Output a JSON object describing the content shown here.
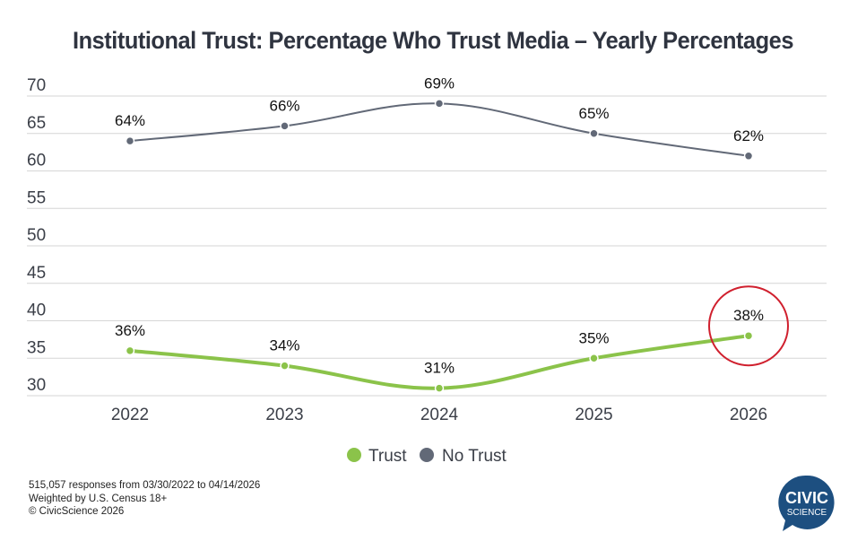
{
  "chart_data": {
    "type": "line",
    "title": "Institutional Trust: Percentage Who Trust Media – Yearly Percentages",
    "xlabel": "",
    "ylabel": "",
    "categories": [
      "2022",
      "2023",
      "2024",
      "2025",
      "2026"
    ],
    "ylim": [
      30,
      70
    ],
    "yticks": [
      30,
      35,
      40,
      45,
      50,
      55,
      60,
      65,
      70
    ],
    "grid": true,
    "legend_position": "bottom-center",
    "series": [
      {
        "name": "Trust",
        "color": "#8bc34a",
        "values": [
          36,
          34,
          31,
          35,
          38
        ],
        "labels": [
          "36%",
          "34%",
          "31%",
          "35%",
          "38%"
        ]
      },
      {
        "name": "No Trust",
        "color": "#626977",
        "values": [
          64,
          66,
          69,
          65,
          62
        ],
        "labels": [
          "64%",
          "66%",
          "69%",
          "65%",
          "62%"
        ]
      }
    ],
    "annotations": [
      {
        "type": "circle",
        "target": "Trust 2026",
        "color": "#d0202e"
      }
    ]
  },
  "footer": {
    "line1": "515,057 responses from 03/30/2022 to 04/14/2026",
    "line2": "Weighted by U.S. Census 18+",
    "line3": "© CivicScience 2026"
  },
  "logo": {
    "line1": "CIVIC",
    "line2": "SCIENCE",
    "color": "#1d4f80"
  }
}
